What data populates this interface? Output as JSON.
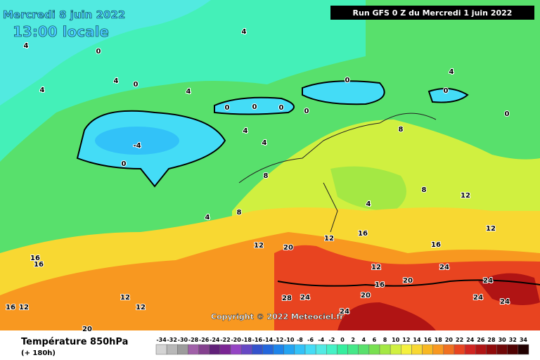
{
  "header": {
    "date": "Mercredi 8 juin 2022",
    "time": "13:00 locale",
    "run": "Run GFS 0 Z du Mercredi 1 juin 2022"
  },
  "copyright": "Copyright © 2022 Meteociel.fr",
  "legend": {
    "title": "Température 850hPa",
    "subtitle": "(+ 180h)",
    "labels": [
      -34,
      -32,
      -30,
      -28,
      -26,
      -24,
      -22,
      -20,
      -18,
      -16,
      -14,
      -12,
      -10,
      -8,
      -6,
      -4,
      -2,
      0,
      2,
      4,
      6,
      8,
      10,
      12,
      14,
      16,
      18,
      20,
      22,
      24,
      26,
      28,
      30,
      32,
      34
    ],
    "colors": [
      "#d4d4d4",
      "#b8b8b8",
      "#9c9c9c",
      "#a060a8",
      "#84408e",
      "#602078",
      "#7a2494",
      "#9444c4",
      "#6648c4",
      "#3452cc",
      "#2266dc",
      "#1c84ea",
      "#22a4f2",
      "#32c2f8",
      "#44dcf6",
      "#52eae4",
      "#44f2c6",
      "#34ee9e",
      "#44e888",
      "#58e06c",
      "#78e050",
      "#a4e844",
      "#d0f040",
      "#f4f03e",
      "#f8d832",
      "#f8b822",
      "#f89820",
      "#f07020",
      "#e84420",
      "#d02420",
      "#b01414",
      "#900a0a",
      "#700808",
      "#500202",
      "#200000"
    ]
  },
  "contour_labels": [
    "4",
    "0",
    "4",
    "4",
    "4",
    "0",
    "4",
    "0",
    "0",
    "0",
    "0",
    "0",
    "0",
    "4",
    "0",
    "4",
    "4",
    "-4",
    "0",
    "8",
    "8",
    "4",
    "12",
    "12",
    "16",
    "20",
    "8",
    "4",
    "8",
    "12",
    "12",
    "16",
    "16",
    "16",
    "16",
    "12",
    "12",
    "12",
    "20",
    "24",
    "24",
    "24",
    "28",
    "24",
    "20",
    "20",
    "24",
    "24",
    "16",
    "12"
  ]
}
